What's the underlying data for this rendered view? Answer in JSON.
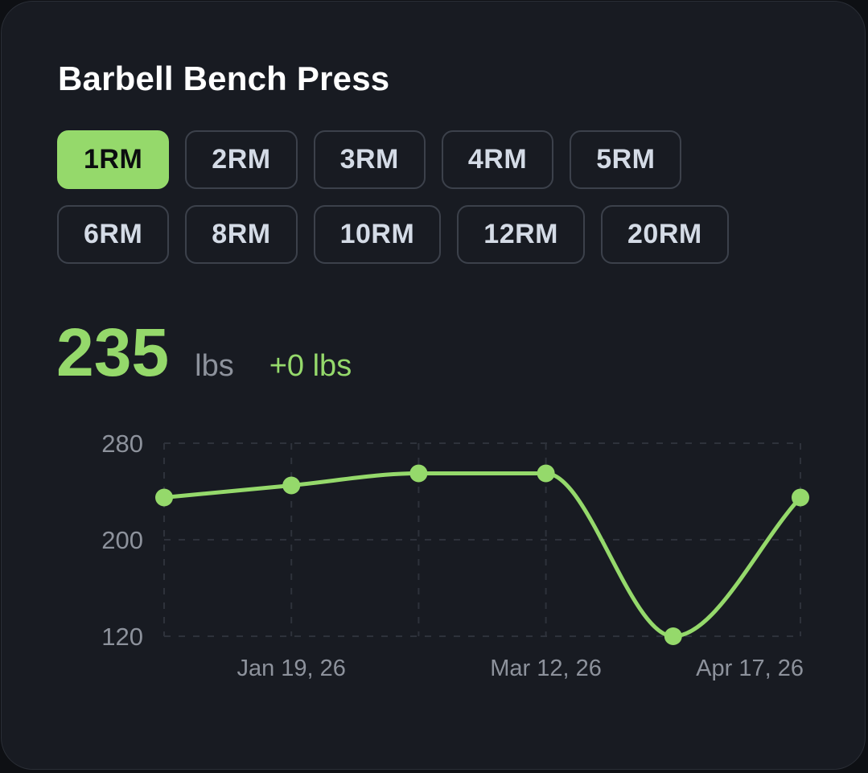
{
  "card": {
    "title": "Barbell Bench Press"
  },
  "rep_max_options": {
    "selected": "1RM",
    "row1": [
      {
        "label": "1RM",
        "active": true
      },
      {
        "label": "2RM",
        "active": false
      },
      {
        "label": "3RM",
        "active": false
      },
      {
        "label": "4RM",
        "active": false
      },
      {
        "label": "5RM",
        "active": false
      }
    ],
    "row2": [
      {
        "label": "6RM",
        "active": false
      },
      {
        "label": "8RM",
        "active": false
      },
      {
        "label": "10RM",
        "active": false
      },
      {
        "label": "12RM",
        "active": false
      },
      {
        "label": "20RM",
        "active": false
      }
    ]
  },
  "stat": {
    "value": "235",
    "unit": "lbs",
    "delta": "+0 lbs"
  },
  "colors": {
    "accent": "#95d96b",
    "background": "#181b22",
    "button_border": "#3c414b",
    "button_text": "#d4dbe6",
    "muted_text": "#8d929c",
    "grid": "#2e323b"
  },
  "chart_data": {
    "type": "line",
    "title": "Barbell Bench Press 1RM",
    "xlabel": "",
    "ylabel": "lbs",
    "ylim": [
      120,
      280
    ],
    "y_ticks": [
      280,
      200,
      120
    ],
    "x_tick_labels": [
      {
        "label": "Jan 19, 26",
        "index": 1
      },
      {
        "label": "Mar 12, 26",
        "index": 3
      },
      {
        "label": "Apr 17, 26",
        "index": 5
      }
    ],
    "grid": true,
    "grid_style": "dashed",
    "smoothing": "monotone curve",
    "series": [
      {
        "name": "1RM",
        "color": "#95d96b",
        "values": [
          235,
          245,
          255,
          255,
          120,
          235
        ]
      }
    ],
    "point_count": 6
  }
}
